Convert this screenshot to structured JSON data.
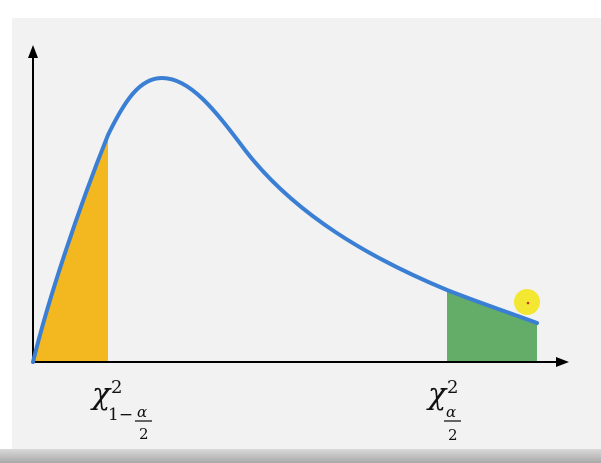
{
  "diagram": {
    "left_label": {
      "symbol": "χ",
      "sup": "2",
      "sub_prefix": "1−",
      "frac_num": "α",
      "frac_den": "2"
    },
    "right_label": {
      "symbol": "χ",
      "sup": "2",
      "frac_num": "α",
      "frac_den": "2"
    },
    "colors": {
      "curve": "#3a7fd4",
      "left_tail": "#f3b820",
      "right_tail": "#63ad68",
      "axes": "#000000",
      "cursor": "#f2e627"
    }
  }
}
